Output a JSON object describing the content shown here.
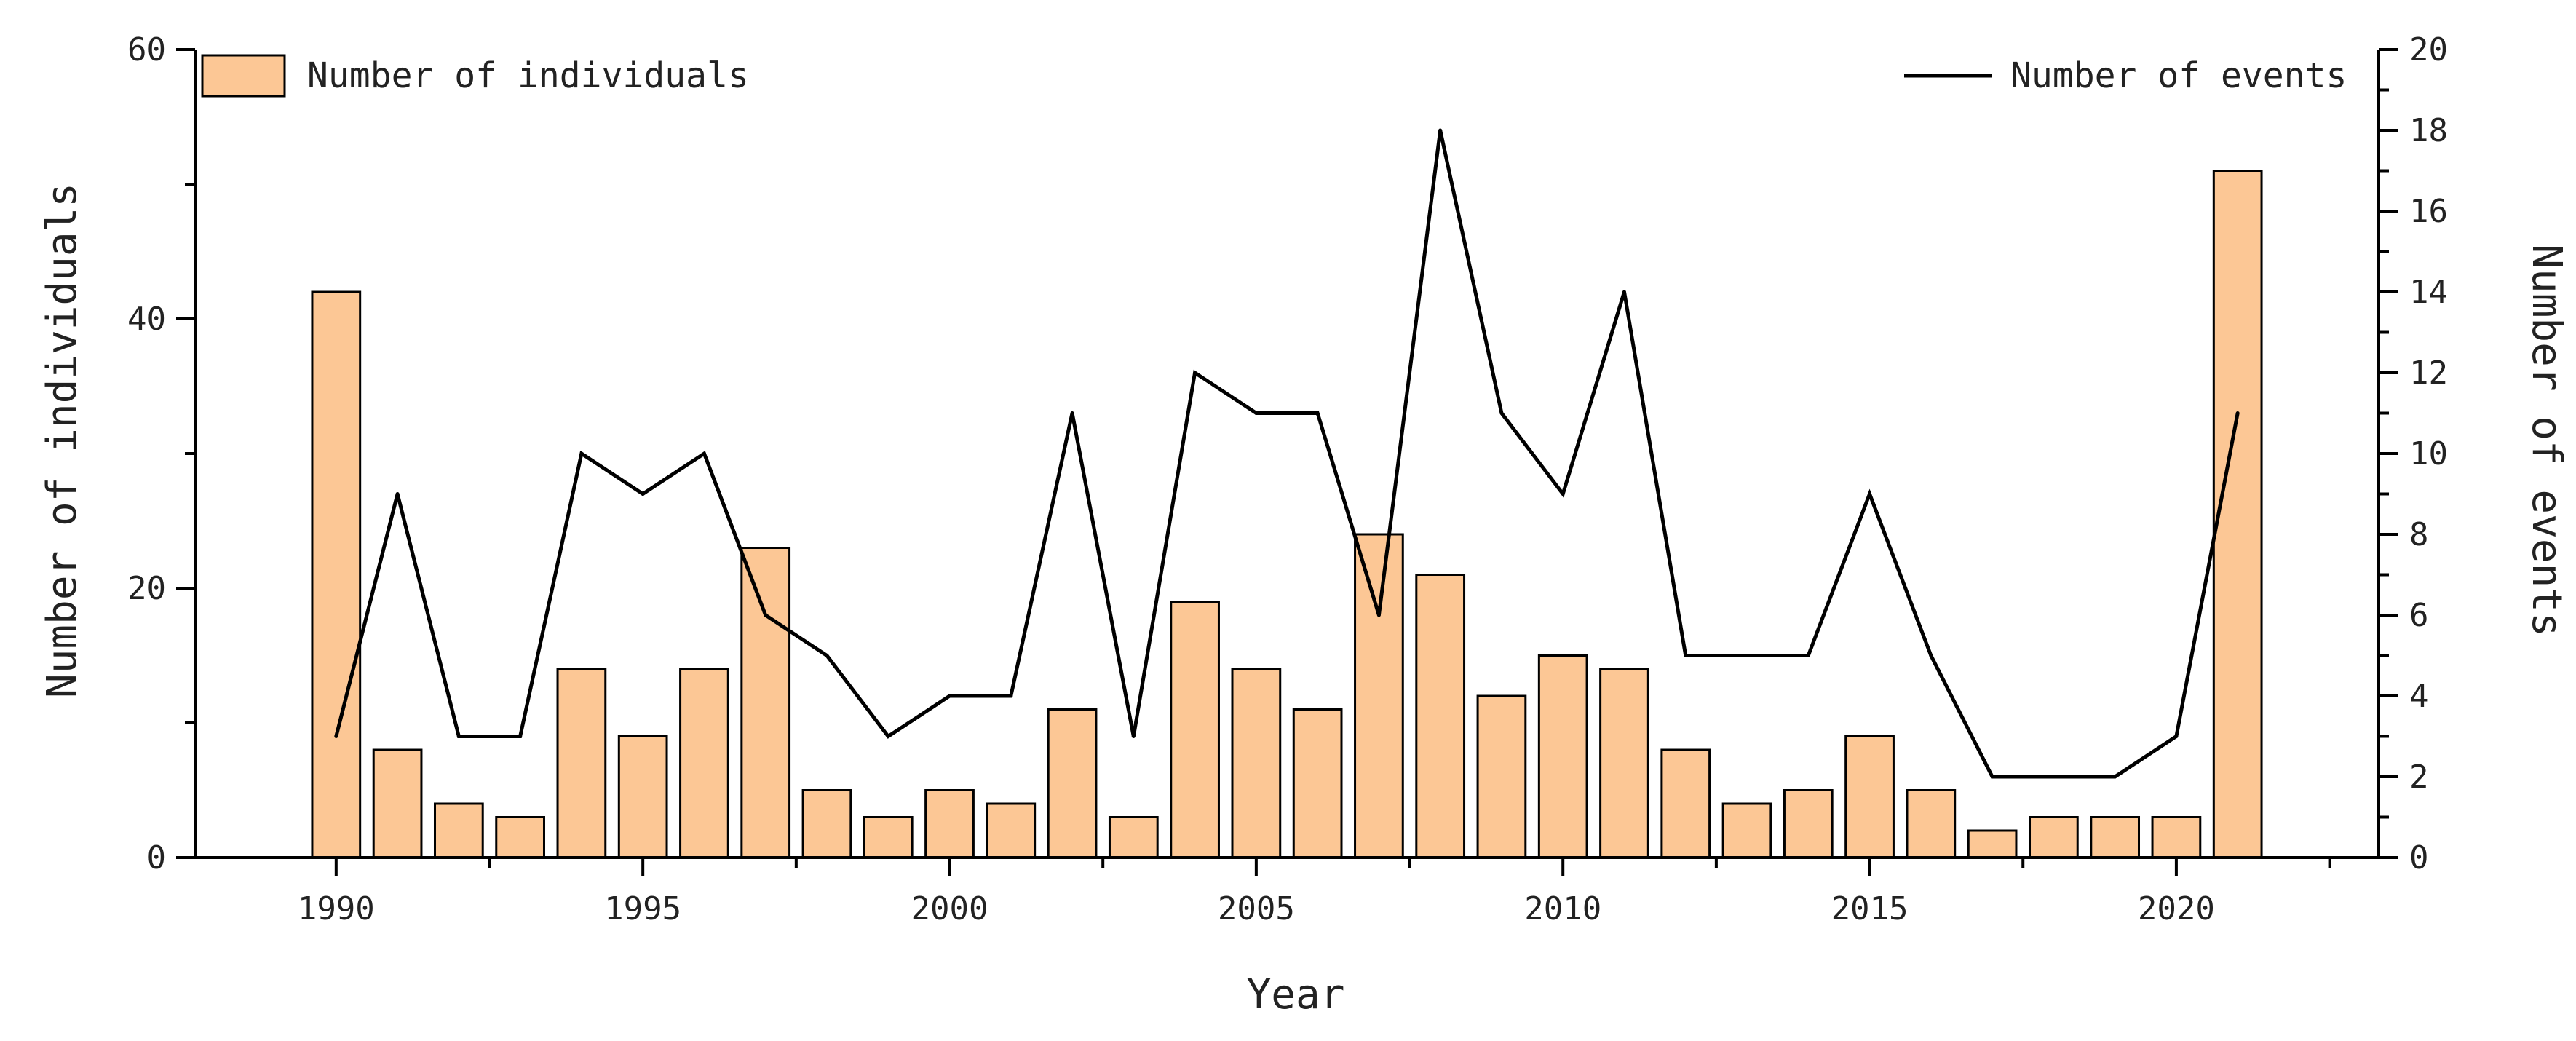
{
  "chart_data": {
    "type": "bar",
    "title": "",
    "xlabel": "Year",
    "ylabel": "Number of individuals",
    "y2label": "Number of events",
    "categories": [
      1990,
      1991,
      1992,
      1993,
      1994,
      1995,
      1996,
      1997,
      1998,
      1999,
      2000,
      2001,
      2002,
      2003,
      2004,
      2005,
      2006,
      2007,
      2008,
      2009,
      2010,
      2011,
      2012,
      2013,
      2014,
      2015,
      2016,
      2017,
      2018,
      2019,
      2020,
      2021
    ],
    "x_tick_labels": [
      "1990",
      "1995",
      "2000",
      "2005",
      "2010",
      "2015",
      "2020"
    ],
    "xlim": [
      1987.7,
      2023.3
    ],
    "ylim": [
      0,
      60
    ],
    "y2lim": [
      0,
      20
    ],
    "y_tick_labels": [
      "0",
      "20",
      "40",
      "60"
    ],
    "y2_tick_labels": [
      "0",
      "2",
      "4",
      "6",
      "8",
      "10",
      "12",
      "14",
      "16",
      "18",
      "20"
    ],
    "legend_position": "top-left and top-right",
    "series": [
      {
        "name": "Number of individuals",
        "type": "bar",
        "axis": "left",
        "color": "#FCC795",
        "edge_color": "#000000",
        "values": [
          42,
          8,
          4,
          3,
          14,
          9,
          14,
          23,
          5,
          3,
          5,
          4,
          11,
          3,
          19,
          14,
          11,
          24,
          21,
          12,
          15,
          14,
          8,
          4,
          5,
          9,
          5,
          2,
          3,
          3,
          3,
          51
        ]
      },
      {
        "name": "Number of events",
        "type": "line",
        "axis": "right",
        "color": "#000000",
        "values": [
          3,
          9,
          3,
          3,
          10,
          9,
          10,
          6,
          5,
          3,
          4,
          4,
          11,
          3,
          12,
          11,
          11,
          6,
          18,
          11,
          9,
          14,
          5,
          5,
          5,
          9,
          5,
          2,
          2,
          2,
          3,
          11
        ]
      }
    ]
  }
}
